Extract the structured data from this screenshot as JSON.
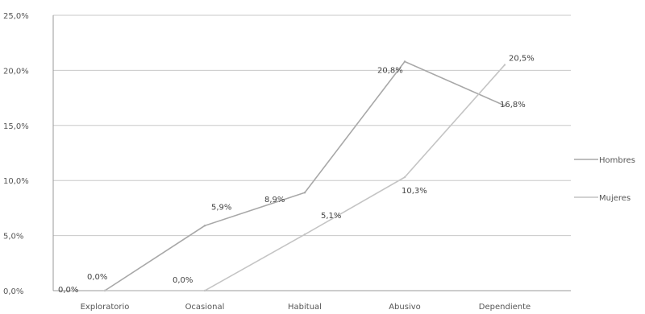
{
  "chart_data": {
    "type": "line",
    "title": "",
    "xlabel": "",
    "ylabel": "",
    "categories": [
      "Exploratorio",
      "Ocasional",
      "Habitual",
      "Abusivo",
      "Dependiente"
    ],
    "ylim": [
      0,
      25
    ],
    "y_ticks": [
      "0,0%",
      "5,0%",
      "10,0%",
      "15,0%",
      "20,0%",
      "25,0%"
    ],
    "grid": true,
    "legend_position": "right",
    "series": [
      {
        "name": "Hombres",
        "values": [
          0.0,
          5.9,
          8.9,
          20.8,
          16.8
        ],
        "labels": [
          "0,0%",
          "5,9%",
          "8,9%",
          "20,8%",
          "16,8%"
        ],
        "color": "#a8a8a8"
      },
      {
        "name": "Mujeres",
        "values": [
          0.0,
          0.0,
          5.1,
          10.3,
          20.5
        ],
        "labels": [
          "0,0%",
          "0,0%",
          "5,1%",
          "10,3%",
          "20,5%"
        ],
        "color": "#c4c4c4"
      }
    ]
  }
}
